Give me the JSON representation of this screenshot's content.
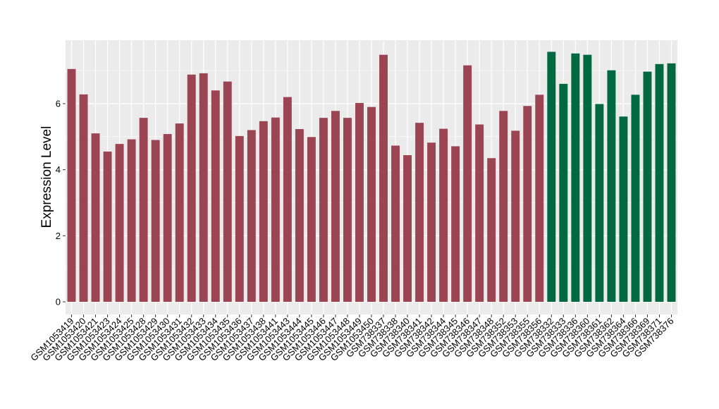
{
  "chart_data": {
    "type": "bar",
    "ylabel": "Expression Level",
    "xlabel": "",
    "ylim": [
      0,
      7.8
    ],
    "yticks": [
      0,
      2,
      4,
      6
    ],
    "grid": true,
    "colors": {
      "group1": "#9b4452",
      "group2": "#006843",
      "panel": "#ebebeb",
      "grid": "#ffffff"
    },
    "categories": [
      "GSM1053419",
      "GSM1053420",
      "GSM1053421",
      "GSM1053423",
      "GSM1053424",
      "GSM1053425",
      "GSM1053428",
      "GSM1053429",
      "GSM1053430",
      "GSM1053431",
      "GSM1053432",
      "GSM1053433",
      "GSM1053434",
      "GSM1053435",
      "GSM1053436",
      "GSM1053437",
      "GSM1053438",
      "GSM1053441",
      "GSM1053443",
      "GSM1053444",
      "GSM1053445",
      "GSM1053446",
      "GSM1053447",
      "GSM1053448",
      "GSM1053449",
      "GSM1053450",
      "GSM738337",
      "GSM738338",
      "GSM738340",
      "GSM738341",
      "GSM738342",
      "GSM738344",
      "GSM738345",
      "GSM738346",
      "GSM738347",
      "GSM738348",
      "GSM738352",
      "GSM738353",
      "GSM738355",
      "GSM738356",
      "GSM738332",
      "GSM738333",
      "GSM738336",
      "GSM738360",
      "GSM738361",
      "GSM738362",
      "GSM738364",
      "GSM738366",
      "GSM738369",
      "GSM738371",
      "GSM738376"
    ],
    "values": [
      7.05,
      6.28,
      5.1,
      4.55,
      4.78,
      4.92,
      5.57,
      4.9,
      5.08,
      5.4,
      6.88,
      6.92,
      6.4,
      6.67,
      5.02,
      5.2,
      5.47,
      5.58,
      6.2,
      5.23,
      4.99,
      5.57,
      5.78,
      5.57,
      6.02,
      5.9,
      7.48,
      4.73,
      4.44,
      5.42,
      4.82,
      5.24,
      4.71,
      7.16,
      5.37,
      4.35,
      5.78,
      5.18,
      5.93,
      6.27,
      7.57,
      6.6,
      7.52,
      7.48,
      5.99,
      7.01,
      5.61,
      6.27,
      6.97,
      7.2,
      7.22
    ],
    "groups": [
      1,
      1,
      1,
      1,
      1,
      1,
      1,
      1,
      1,
      1,
      1,
      1,
      1,
      1,
      1,
      1,
      1,
      1,
      1,
      1,
      1,
      1,
      1,
      1,
      1,
      1,
      1,
      1,
      1,
      1,
      1,
      1,
      1,
      1,
      1,
      1,
      1,
      1,
      1,
      1,
      2,
      2,
      2,
      2,
      2,
      2,
      2,
      2,
      2,
      2,
      2
    ]
  }
}
